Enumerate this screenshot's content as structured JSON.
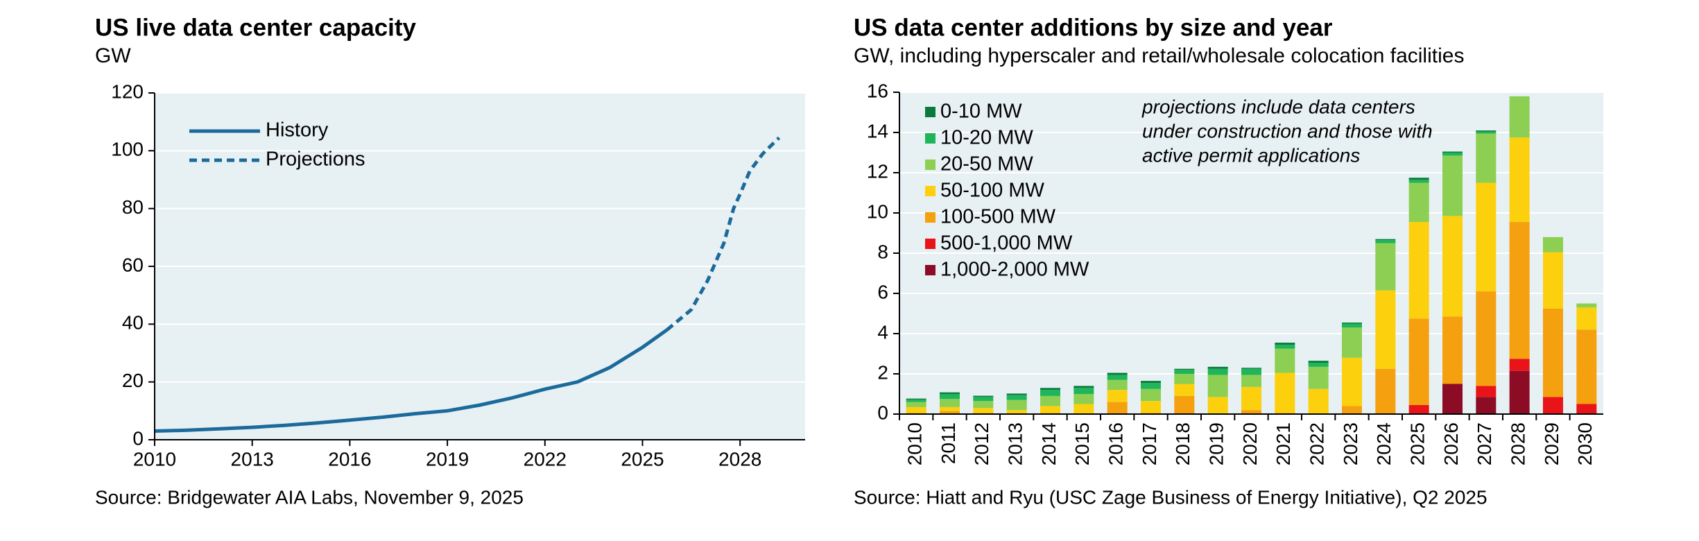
{
  "chart_data": [
    {
      "type": "line",
      "title": "US live data center capacity",
      "subtitle": "GW",
      "source": "Source: Bridgewater AIA Labs, November 9, 2025",
      "xlim": [
        2010,
        2030
      ],
      "xticks": [
        2010,
        2013,
        2016,
        2019,
        2022,
        2025,
        2028
      ],
      "ylim": [
        0,
        120
      ],
      "yticks": [
        0,
        20,
        40,
        60,
        80,
        100,
        120
      ],
      "grid": true,
      "series": [
        {
          "name": "History",
          "color": "#1b6a9c",
          "dashed": false,
          "x": [
            2010,
            2011,
            2012,
            2013,
            2014,
            2015,
            2016,
            2017,
            2018,
            2019,
            2020,
            2021,
            2022,
            2023,
            2024,
            2025,
            2025.75
          ],
          "values": [
            3,
            3.3,
            3.8,
            4.3,
            5,
            5.8,
            6.8,
            7.8,
            9,
            10,
            12,
            14.5,
            17.5,
            20,
            25,
            32,
            38
          ]
        },
        {
          "name": "Projections",
          "color": "#1b6a9c",
          "dashed": true,
          "x": [
            2025.75,
            2026.5,
            2027,
            2027.5,
            2027.8,
            2028,
            2028.3,
            2028.7,
            2029.2
          ],
          "values": [
            38,
            45,
            55,
            68,
            80,
            85,
            93,
            99,
            104.5
          ]
        }
      ]
    },
    {
      "type": "bar",
      "stacked": true,
      "title": "US data center additions by size and year",
      "subtitle": "GW, including hyperscaler and retail/wholesale colocation facilities",
      "source": "Source: Hiatt and Ryu (USC Zage Business of Energy Initiative), Q2 2025",
      "annotation": [
        "projections include data centers",
        "under construction and those with",
        "active permit applications"
      ],
      "categories": [
        "2010",
        "2011",
        "2012",
        "2013",
        "2014",
        "2015",
        "2016",
        "2017",
        "2018",
        "2019",
        "2020",
        "2021",
        "2022",
        "2023",
        "2024",
        "2025",
        "2026",
        "2027",
        "2028",
        "2029",
        "2030"
      ],
      "ylim": [
        0,
        16
      ],
      "yticks": [
        0,
        2,
        4,
        6,
        8,
        10,
        12,
        14,
        16
      ],
      "grid": true,
      "series": [
        {
          "name": "1,000-2,000 MW",
          "color": "#8b0c24",
          "values": [
            0,
            0,
            0,
            0,
            0,
            0,
            0,
            0,
            0,
            0,
            0,
            0,
            0,
            0,
            0,
            0,
            1.5,
            0.85,
            2.15,
            0,
            0
          ]
        },
        {
          "name": "500-1,000 MW",
          "color": "#e8141a",
          "values": [
            0,
            0,
            0,
            0,
            0,
            0,
            0,
            0,
            0,
            0,
            0,
            0,
            0,
            0,
            0,
            0.45,
            0,
            0.55,
            0.6,
            0.85,
            0.5
          ]
        },
        {
          "name": "100-500 MW",
          "color": "#f5a00f",
          "values": [
            0.05,
            0.15,
            0.05,
            0,
            0.05,
            0,
            0.6,
            0.05,
            0.9,
            0,
            0.2,
            0.05,
            0,
            0.4,
            2.25,
            4.3,
            3.35,
            4.7,
            6.8,
            4.4,
            3.7
          ]
        },
        {
          "name": "50-100 MW",
          "color": "#fcd00c",
          "values": [
            0.3,
            0.2,
            0.25,
            0.2,
            0.35,
            0.5,
            0.6,
            0.6,
            0.6,
            0.85,
            1.15,
            2,
            1.25,
            2.4,
            3.9,
            4.8,
            5,
            5.4,
            4.2,
            2.8,
            1.1
          ]
        },
        {
          "name": "20-50 MW",
          "color": "#8ccf52",
          "values": [
            0.25,
            0.4,
            0.35,
            0.5,
            0.5,
            0.5,
            0.5,
            0.6,
            0.5,
            1.1,
            0.6,
            1.2,
            1.1,
            1.5,
            2.35,
            1.95,
            3,
            2.45,
            2.05,
            0.75,
            0.2
          ]
        },
        {
          "name": "10-20 MW",
          "color": "#1fb55a",
          "values": [
            0.12,
            0.25,
            0.2,
            0.25,
            0.3,
            0.3,
            0.25,
            0.3,
            0.2,
            0.3,
            0.3,
            0.2,
            0.2,
            0.2,
            0.15,
            0.15,
            0.15,
            0.1,
            0,
            0,
            0
          ]
        },
        {
          "name": "0-10 MW",
          "color": "#0b7a3c",
          "values": [
            0.05,
            0.08,
            0.06,
            0.07,
            0.1,
            0.1,
            0.1,
            0.1,
            0.05,
            0.1,
            0.05,
            0.1,
            0.1,
            0.05,
            0.05,
            0.1,
            0.05,
            0.05,
            0,
            0,
            0
          ]
        }
      ]
    }
  ]
}
